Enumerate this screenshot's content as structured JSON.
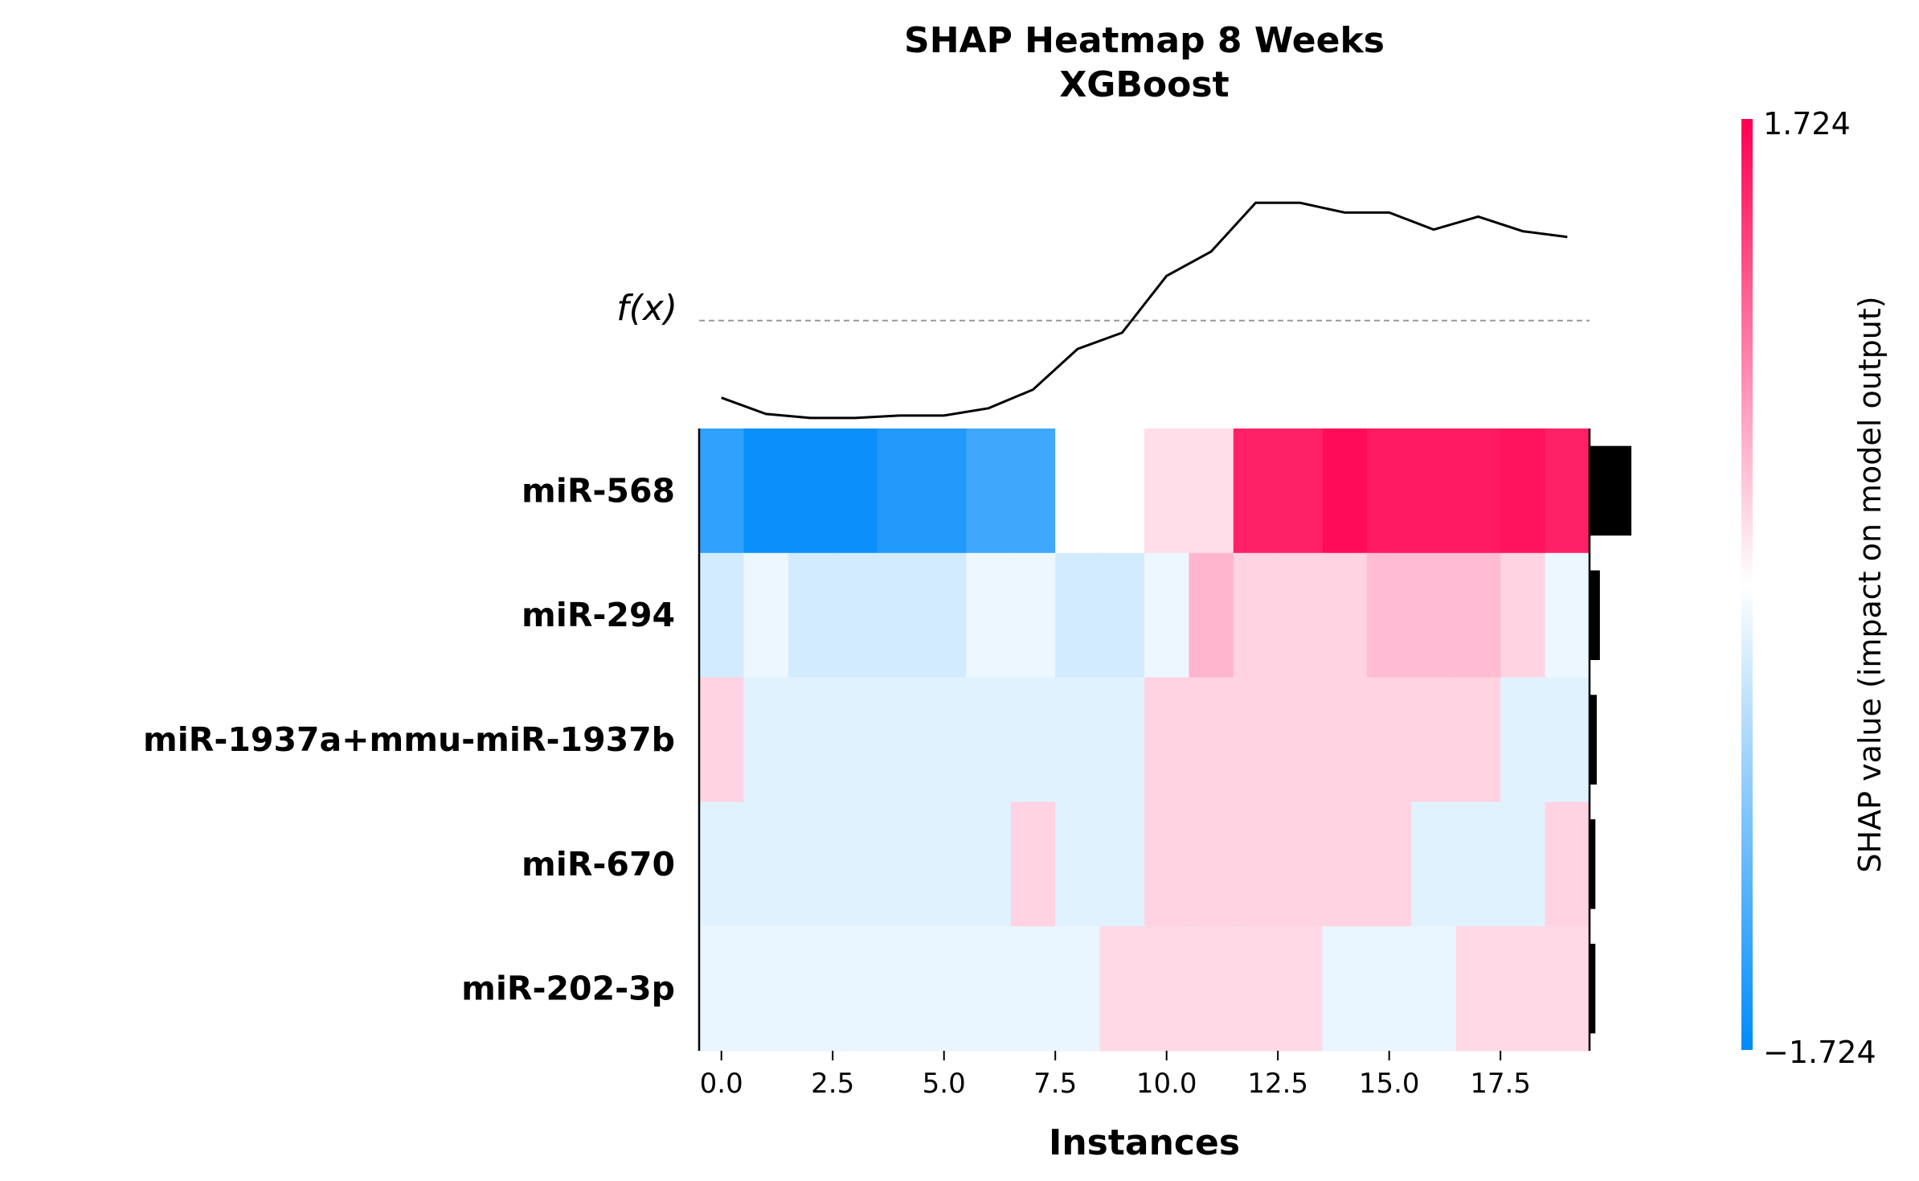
{
  "chart_data": {
    "type": "heatmap",
    "title": "SHAP Heatmap 8 Weeks",
    "subtitle": "XGBoost",
    "xlabel": "Instances",
    "fx_label": "f(x)",
    "colorbar_label": "SHAP value (impact on model output)",
    "colorbar_range": [
      -1.724,
      1.724
    ],
    "colorbar_tick_labels": [
      "1.724",
      "−1.724"
    ],
    "colors": {
      "negative": "#008bfb",
      "positive": "#ff0051",
      "neutral": "#ffffff",
      "importance_bar": "#000000"
    },
    "x_ticks": [
      0.0,
      2.5,
      5.0,
      7.5,
      10.0,
      12.5,
      15.0,
      17.5
    ],
    "x_tick_labels": [
      "0.0",
      "2.5",
      "5.0",
      "7.5",
      "10.0",
      "12.5",
      "15.0",
      "17.5"
    ],
    "xlim": [
      -0.5,
      19.5
    ],
    "features": [
      "miR-568",
      "miR-294",
      "miR-1937a+mmu-miR-1937b",
      "miR-670",
      "miR-202-3p"
    ],
    "values": [
      [
        -1.4,
        -1.65,
        -1.65,
        -1.65,
        -1.5,
        -1.5,
        -1.3,
        -1.3,
        0.0,
        0.0,
        0.22,
        0.22,
        1.5,
        1.5,
        1.65,
        1.55,
        1.55,
        1.55,
        1.6,
        1.5
      ],
      [
        -0.3,
        -0.12,
        -0.3,
        -0.3,
        -0.3,
        -0.3,
        -0.12,
        -0.12,
        -0.3,
        -0.3,
        -0.12,
        0.5,
        0.3,
        0.3,
        0.3,
        0.45,
        0.45,
        0.45,
        0.3,
        -0.12
      ],
      [
        0.3,
        -0.2,
        -0.2,
        -0.2,
        -0.2,
        -0.2,
        -0.2,
        -0.2,
        -0.2,
        -0.2,
        0.3,
        0.3,
        0.3,
        0.3,
        0.3,
        0.3,
        0.3,
        0.3,
        -0.2,
        -0.2
      ],
      [
        -0.2,
        -0.2,
        -0.2,
        -0.2,
        -0.2,
        -0.2,
        -0.2,
        0.3,
        -0.2,
        -0.2,
        0.3,
        0.3,
        0.3,
        0.3,
        0.3,
        0.3,
        -0.2,
        -0.2,
        -0.2,
        0.3
      ],
      [
        -0.15,
        -0.15,
        -0.15,
        -0.15,
        -0.15,
        -0.15,
        -0.15,
        -0.15,
        -0.15,
        0.25,
        0.25,
        0.25,
        0.25,
        0.25,
        -0.15,
        -0.15,
        -0.15,
        0.25,
        0.25,
        0.25
      ]
    ],
    "fx_values": [
      0.25,
      0.05,
      0.0,
      0.0,
      0.03,
      0.03,
      0.12,
      0.35,
      0.85,
      1.05,
      1.75,
      2.05,
      2.65,
      2.65,
      2.53,
      2.53,
      2.32,
      2.48,
      2.3,
      2.23
    ],
    "fx_ylim": [
      -0.1,
      2.92
    ],
    "fx_baseline": 1.2,
    "feature_importance": [
      0.93,
      0.23,
      0.16,
      0.13,
      0.13
    ]
  }
}
